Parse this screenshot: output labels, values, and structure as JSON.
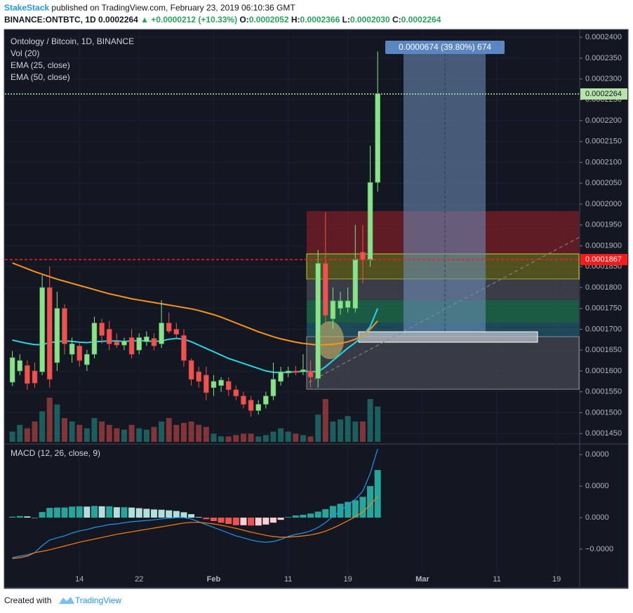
{
  "header": {
    "author": "StakeStack",
    "published": "published on TradingView.com, February 23, 2019 06:10:36 GMT",
    "symbol": "BINANCE:ONTBTC, 1D",
    "last": "0.0002264",
    "change": "▲ +0.0000212 (+10.33%)",
    "ohlc": [
      {
        "label": "O:",
        "value": "0.0002052"
      },
      {
        "label": "H:",
        "value": "0.0002366"
      },
      {
        "label": "L:",
        "value": "0.0002030"
      },
      {
        "label": "C:",
        "value": "0.0002264"
      }
    ]
  },
  "chart_data": {
    "type": "candlestick",
    "title": "Ontology / Bitcoin, 1D, BINANCE",
    "volume_name": "Vol (20)",
    "up_color": "#8fe08a",
    "down_color": "#ef5350",
    "x": [
      "Jan 5",
      "Jan 6",
      "Jan 7",
      "Jan 8",
      "Jan 9",
      "Jan 10",
      "Jan 11",
      "Jan 12",
      "Jan 13",
      "Jan 14",
      "Jan 15",
      "Jan 16",
      "Jan 17",
      "Jan 18",
      "Jan 19",
      "Jan 20",
      "Jan 21",
      "Jan 22",
      "Jan 23",
      "Jan 24",
      "Jan 25",
      "Jan 26",
      "Jan 27",
      "Jan 28",
      "Jan 29",
      "Jan 30",
      "Jan 31",
      "Feb 1",
      "Feb 2",
      "Feb 3",
      "Feb 4",
      "Feb 5",
      "Feb 6",
      "Feb 7",
      "Feb 8",
      "Feb 9",
      "Feb 10",
      "Feb 11",
      "Feb 12",
      "Feb 13",
      "Feb 14",
      "Feb 15",
      "Feb 16",
      "Feb 17",
      "Feb 18",
      "Feb 19",
      "Feb 20",
      "Feb 21",
      "Feb 22",
      "Feb 23"
    ],
    "open": [
      0.0001573,
      0.00016,
      0.0001613,
      0.00016,
      0.0001598,
      0.00018,
      0.000162,
      0.000175,
      0.000164,
      0.000166,
      0.0001615,
      0.000164,
      0.0001715,
      0.00017,
      0.000167,
      0.0001662,
      0.000168,
      0.000165,
      0.000167,
      0.0001678,
      0.0001665,
      0.0001715,
      0.00017,
      0.0001685,
      0.0001625,
      0.0001598,
      0.000159,
      0.000156,
      0.0001565,
      0.0001575,
      0.0001555,
      0.000154,
      0.000153,
      0.0001505,
      0.000152,
      0.000154,
      0.0001575,
      0.0001595,
      0.00016,
      0.0001598,
      0.00016,
      0.0001582,
      0.0001858,
      0.0001725,
      0.000175,
      0.0001752,
      0.000175,
      0.0001885,
      0.0001866,
      0.0002052
    ],
    "high": [
      0.0001648,
      0.000164,
      0.0001625,
      0.000162,
      0.000183,
      0.000185,
      0.000179,
      0.000176,
      0.000168,
      0.000167,
      0.000165,
      0.000173,
      0.0001725,
      0.000172,
      0.000169,
      0.000168,
      0.00017,
      0.000169,
      0.0001695,
      0.000169,
      0.000177,
      0.000174,
      0.0001715,
      0.00017,
      0.000163,
      0.000161,
      0.000161,
      0.000159,
      0.0001585,
      0.0001585,
      0.0001565,
      0.000155,
      0.000154,
      0.000153,
      0.000155,
      0.000162,
      0.000161,
      0.000161,
      0.0001612,
      0.000164,
      0.0001625,
      0.000189,
      0.000198,
      0.00018,
      0.000179,
      0.00018,
      0.000195,
      0.000195,
      0.000214,
      0.0002366
    ],
    "low": [
      0.0001564,
      0.000159,
      0.0001555,
      0.000156,
      0.000159,
      0.000156,
      0.00016,
      0.000164,
      0.000162,
      0.000161,
      0.00016,
      0.000163,
      0.0001665,
      0.000165,
      0.0001655,
      0.000165,
      0.000163,
      0.000164,
      0.000166,
      0.000165,
      0.0001655,
      0.000169,
      0.000168,
      0.000161,
      0.0001565,
      0.000156,
      0.000153,
      0.000154,
      0.000155,
      0.000154,
      0.000153,
      0.000151,
      0.000149,
      0.0001495,
      0.000151,
      0.000153,
      0.0001565,
      0.0001585,
      0.000159,
      0.000159,
      0.000156,
      0.000156,
      0.00017,
      0.00017,
      0.0001735,
      0.000174,
      0.000174,
      0.000181,
      0.000185,
      0.000203
    ],
    "close": [
      0.0001632,
      0.0001625,
      0.000157,
      0.0001571,
      0.00018,
      0.000158,
      0.000175,
      0.0001665,
      0.0001665,
      0.0001625,
      0.000164,
      0.0001715,
      0.0001685,
      0.0001665,
      0.0001662,
      0.0001672,
      0.000164,
      0.000168,
      0.0001682,
      0.000166,
      0.0001715,
      0.0001695,
      0.0001688,
      0.0001625,
      0.000158,
      0.0001575,
      0.0001548,
      0.0001575,
      0.0001578,
      0.0001555,
      0.000154,
      0.000152,
      0.0001505,
      0.000152,
      0.000154,
      0.000158,
      0.0001598,
      0.00016,
      0.0001596,
      0.0001603,
      0.0001585,
      0.0001858,
      0.0001733,
      0.0001768,
      0.0001768,
      0.0001768,
      0.0001868,
      0.0001866,
      0.0002052,
      0.0002264
    ],
    "volume": [
      15,
      25,
      20,
      30,
      45,
      65,
      55,
      35,
      30,
      25,
      20,
      35,
      30,
      25,
      20,
      18,
      25,
      20,
      18,
      22,
      30,
      35,
      25,
      28,
      30,
      25,
      22,
      12,
      8,
      8,
      10,
      12,
      12,
      8,
      10,
      15,
      20,
      15,
      12,
      10,
      8,
      40,
      63,
      30,
      33,
      38,
      30,
      30,
      63,
      52
    ],
    "series": [
      {
        "name": "EMA (25, close)",
        "color": "#26d7e8",
        "values": [
          0.0001674,
          0.000167,
          0.0001666,
          0.0001663,
          0.0001663,
          0.0001668,
          0.000167,
          0.0001672,
          0.0001671,
          0.0001669,
          0.0001668,
          0.000167,
          0.0001671,
          0.0001672,
          0.0001672,
          0.0001671,
          0.0001672,
          0.0001673,
          0.0001672,
          0.0001671,
          0.0001672,
          0.0001676,
          0.0001678,
          0.0001676,
          0.000167,
          0.0001662,
          0.0001654,
          0.0001646,
          0.0001638,
          0.000163,
          0.0001624,
          0.0001618,
          0.0001612,
          0.0001606,
          0.00016,
          0.0001597,
          0.0001596,
          0.0001597,
          0.0001598,
          0.0001599,
          0.0001599,
          0.0001598,
          0.000161,
          0.0001625,
          0.000164,
          0.0001655,
          0.0001668,
          0.0001685,
          0.0001706,
          0.000175
        ]
      },
      {
        "name": "EMA (50, close)",
        "color": "#f7931a",
        "values": [
          0.0001859,
          0.0001852,
          0.0001845,
          0.0001838,
          0.0001832,
          0.0001826,
          0.000182,
          0.0001815,
          0.000181,
          0.0001805,
          0.00018,
          0.0001795,
          0.000179,
          0.0001785,
          0.0001781,
          0.0001777,
          0.0001773,
          0.000177,
          0.0001767,
          0.0001764,
          0.0001761,
          0.0001758,
          0.0001755,
          0.0001752,
          0.0001749,
          0.0001745,
          0.000174,
          0.0001735,
          0.0001729,
          0.0001722,
          0.0001715,
          0.0001708,
          0.0001701,
          0.0001694,
          0.0001688,
          0.0001682,
          0.0001677,
          0.0001673,
          0.0001669,
          0.0001666,
          0.0001664,
          0.0001662,
          0.0001663,
          0.0001664,
          0.0001666,
          0.000167,
          0.0001676,
          0.0001685,
          0.00017,
          0.000172
        ]
      }
    ],
    "xlim": [
      "Jan 4",
      "Mar 22"
    ],
    "xticks": [
      {
        "value": "Jan 14",
        "label": "14"
      },
      {
        "value": "Jan 22",
        "label": "22"
      },
      {
        "value": "Feb 1",
        "label": "Feb"
      },
      {
        "value": "Feb 11",
        "label": "11"
      },
      {
        "value": "Feb 19",
        "label": "19"
      },
      {
        "value": "Mar 1",
        "label": "Mar"
      },
      {
        "value": "Mar 11",
        "label": "11"
      },
      {
        "value": "Mar 19",
        "label": "19"
      }
    ],
    "ylim": [
      0.000143,
      0.0002417
    ],
    "yticks": [
      {
        "value": 0.000145,
        "label": "0.0001450"
      },
      {
        "value": 0.00015,
        "label": "0.0001500"
      },
      {
        "value": 0.000155,
        "label": "0.0001550"
      },
      {
        "value": 0.00016,
        "label": "0.0001600"
      },
      {
        "value": 0.000165,
        "label": "0.0001650"
      },
      {
        "value": 0.00017,
        "label": "0.0001700"
      },
      {
        "value": 0.000175,
        "label": "0.0001750"
      },
      {
        "value": 0.00018,
        "label": "0.0001800"
      },
      {
        "value": 0.000185,
        "label": "0.0001850"
      },
      {
        "value": 0.00019,
        "label": "0.0001900"
      },
      {
        "value": 0.000195,
        "label": "0.0001950"
      },
      {
        "value": 0.0002,
        "label": "0.0002000"
      },
      {
        "value": 0.000205,
        "label": "0.0002050"
      },
      {
        "value": 0.00021,
        "label": "0.0002100"
      },
      {
        "value": 0.000215,
        "label": "0.0002150"
      },
      {
        "value": 0.00022,
        "label": "0.0002200"
      },
      {
        "value": 0.000225,
        "label": "0.0002250"
      },
      {
        "value": 0.00023,
        "label": "0.0002300"
      },
      {
        "value": 0.000235,
        "label": "0.0002350"
      },
      {
        "value": 0.00024,
        "label": "0.0002400"
      }
    ],
    "price_lines": [
      {
        "value": 0.0002264,
        "label": "0.0002264",
        "color": "#b7e4a9",
        "text_color": "#131722",
        "dash": "2 2"
      },
      {
        "value": 0.0001867,
        "label": "0.0001867",
        "color": "#ff1a1a",
        "text_color": "#ffffff",
        "dash": "4 3"
      }
    ],
    "measure_label": "0.0000674 (39.80%) 674",
    "macd": {
      "title": "MACD (12, 26, close, 9)",
      "ylim": [
        -2.18e-06,
        2.27e-06
      ],
      "yticks": [
        {
          "value": 2e-06,
          "label": "0.0000"
        },
        {
          "value": 1e-06,
          "label": "0.0000"
        },
        {
          "value": 0,
          "label": "0.0000"
        },
        {
          "value": -1e-06,
          "label": "−0.0000"
        }
      ],
      "histogram": [
        3e-08,
        5e-08,
        4e-08,
        0,
        1.8e-07,
        3.1e-07,
        3.2e-07,
        3.2e-07,
        3.5e-07,
        3.6e-07,
        3.5e-07,
        3.7e-07,
        3.6e-07,
        3.6e-07,
        3.3e-07,
        3.3e-07,
        3.2e-07,
        3e-07,
        2.8e-07,
        2.6e-07,
        2.5e-07,
        2.3e-07,
        2.1e-07,
        1.7e-07,
        1.1e-07,
        2e-08,
        -5e-08,
        -1.1e-07,
        -1.6e-07,
        -2e-07,
        -2.4e-07,
        -2.4e-07,
        -2.5e-07,
        -2.5e-07,
        -2.2e-07,
        -1.6e-07,
        -7e-08,
        2e-08,
        7e-08,
        9e-08,
        1.3e-07,
        1.9e-07,
        2.7e-07,
        3.7e-07,
        4.4e-07,
        5e-07,
        5.5e-07,
        6.6e-07,
        1e-06,
        1.51e-06
      ],
      "macd_line": {
        "color": "#2196f3",
        "values": [
          -1.27e-06,
          -1.22e-06,
          -1.18e-06,
          -1.11e-06,
          -8.9e-07,
          -7.1e-07,
          -6.4e-07,
          -5.8e-07,
          -4.9e-07,
          -4.2e-07,
          -3.8e-07,
          -3.1e-07,
          -2.7e-07,
          -2.2e-07,
          -2e-07,
          -1.6e-07,
          -1.3e-07,
          -1.1e-07,
          -9e-08,
          -7e-08,
          -4e-08,
          -2e-08,
          0,
          0,
          -4e-08,
          -1.3e-07,
          -2.2e-07,
          -3.1e-07,
          -4e-07,
          -4.9e-07,
          -5.8e-07,
          -6.4e-07,
          -7.1e-07,
          -7.6e-07,
          -7.8e-07,
          -7.6e-07,
          -6.9e-07,
          -6e-07,
          -5.3e-07,
          -4.9e-07,
          -4.2e-07,
          -3.1e-07,
          -1.6e-07,
          4e-08,
          2.2e-07,
          4e-07,
          5.8e-07,
          8.4e-07,
          1.4e-06,
          2.18e-06
        ]
      },
      "signal_line": {
        "color": "#ff7f0e",
        "values": [
          -1.3e-06,
          -1.27e-06,
          -1.22e-06,
          -1.11e-06,
          -1.07e-06,
          -1.02e-06,
          -9.6e-07,
          -9e-07,
          -8.4e-07,
          -7.8e-07,
          -7.3e-07,
          -6.8e-07,
          -6.3e-07,
          -5.8e-07,
          -5.3e-07,
          -4.9e-07,
          -4.5e-07,
          -4.1e-07,
          -3.7e-07,
          -3.3e-07,
          -2.9e-07,
          -2.5e-07,
          -2.1e-07,
          -1.7e-07,
          -1.5e-07,
          -1.5e-07,
          -1.7e-07,
          -2e-07,
          -2.4e-07,
          -2.9e-07,
          -3.4e-07,
          -4e-07,
          -4.6e-07,
          -5.1e-07,
          -5.6e-07,
          -6e-07,
          -6.2e-07,
          -6.2e-07,
          -6e-07,
          -5.8e-07,
          -5.5e-07,
          -5e-07,
          -4.3e-07,
          -3.3e-07,
          -2.2e-07,
          -1e-07,
          3e-08,
          1.8e-07,
          4e-07,
          6.7e-07
        ]
      }
    }
  },
  "footer": {
    "created": "Created with",
    "brand": "TradingView"
  }
}
